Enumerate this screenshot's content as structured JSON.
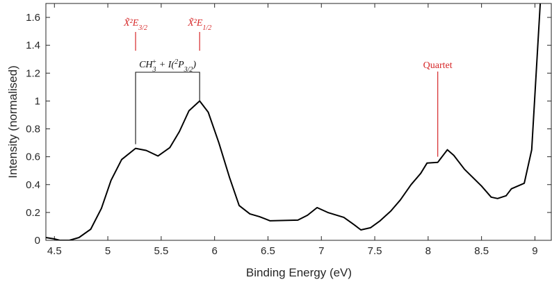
{
  "chart_data": {
    "type": "line",
    "xlabel": "Binding Energy (eV)",
    "ylabel": "Intensity (normalised)",
    "xlim": [
      4.42,
      9.16
    ],
    "ylim": [
      0,
      1.7
    ],
    "x_ticks": [
      4.5,
      5,
      5.5,
      6,
      6.5,
      7,
      7.5,
      8,
      8.5,
      9
    ],
    "x_tick_labels": [
      "4.5",
      "5",
      "5.5",
      "6",
      "6.5",
      "7",
      "7.5",
      "8",
      "8.5",
      "9"
    ],
    "y_ticks": [
      0,
      0.2,
      0.4,
      0.6,
      0.8,
      1,
      1.2,
      1.4,
      1.6
    ],
    "y_tick_labels": [
      "0",
      "0.2",
      "0.4",
      "0.6",
      "0.8",
      "1",
      "1.2",
      "1.4",
      "1.6"
    ],
    "grid": false,
    "series": [
      {
        "color": "#000000",
        "x": [
          4.42,
          4.5,
          4.55,
          4.64,
          4.73,
          4.84,
          4.94,
          5.03,
          5.13,
          5.26,
          5.36,
          5.47,
          5.58,
          5.67,
          5.76,
          5.86,
          5.94,
          6.04,
          6.14,
          6.23,
          6.33,
          6.42,
          6.52,
          6.78,
          6.87,
          6.96,
          7.06,
          7.21,
          7.31,
          7.37,
          7.46,
          7.55,
          7.65,
          7.74,
          7.84,
          7.93,
          7.99,
          8.09,
          8.18,
          8.24,
          8.34,
          8.5,
          8.59,
          8.65,
          8.73,
          8.78,
          8.9,
          8.97,
          9.05
        ],
        "y": [
          0.02,
          0.01,
          0.0,
          0.0,
          0.02,
          0.08,
          0.23,
          0.43,
          0.58,
          0.66,
          0.645,
          0.605,
          0.665,
          0.78,
          0.93,
          1.0,
          0.92,
          0.7,
          0.45,
          0.25,
          0.19,
          0.17,
          0.14,
          0.145,
          0.18,
          0.235,
          0.2,
          0.165,
          0.11,
          0.075,
          0.09,
          0.14,
          0.21,
          0.29,
          0.4,
          0.48,
          0.555,
          0.56,
          0.65,
          0.61,
          0.51,
          0.39,
          0.31,
          0.3,
          0.32,
          0.37,
          0.41,
          0.65,
          1.7
        ]
      }
    ],
    "annotations": {
      "peak1": {
        "label": "X̃²E",
        "sub": "3/2",
        "x": 5.26,
        "color": "#d62728"
      },
      "peak2": {
        "label": "X̃²E",
        "sub": "1/2",
        "x": 5.86,
        "color": "#d62728"
      },
      "quartet": {
        "label": "Quartet",
        "x": 8.09,
        "color": "#d62728"
      },
      "bracket": {
        "x1": 5.26,
        "x2": 5.86,
        "text_main": "CH",
        "text_sub": "3",
        "text_sup": "+",
        "text_mid": " + I(",
        "text_sup2": "2",
        "text_p": "P",
        "text_sub2": "3/2",
        "text_end": ")"
      }
    }
  }
}
